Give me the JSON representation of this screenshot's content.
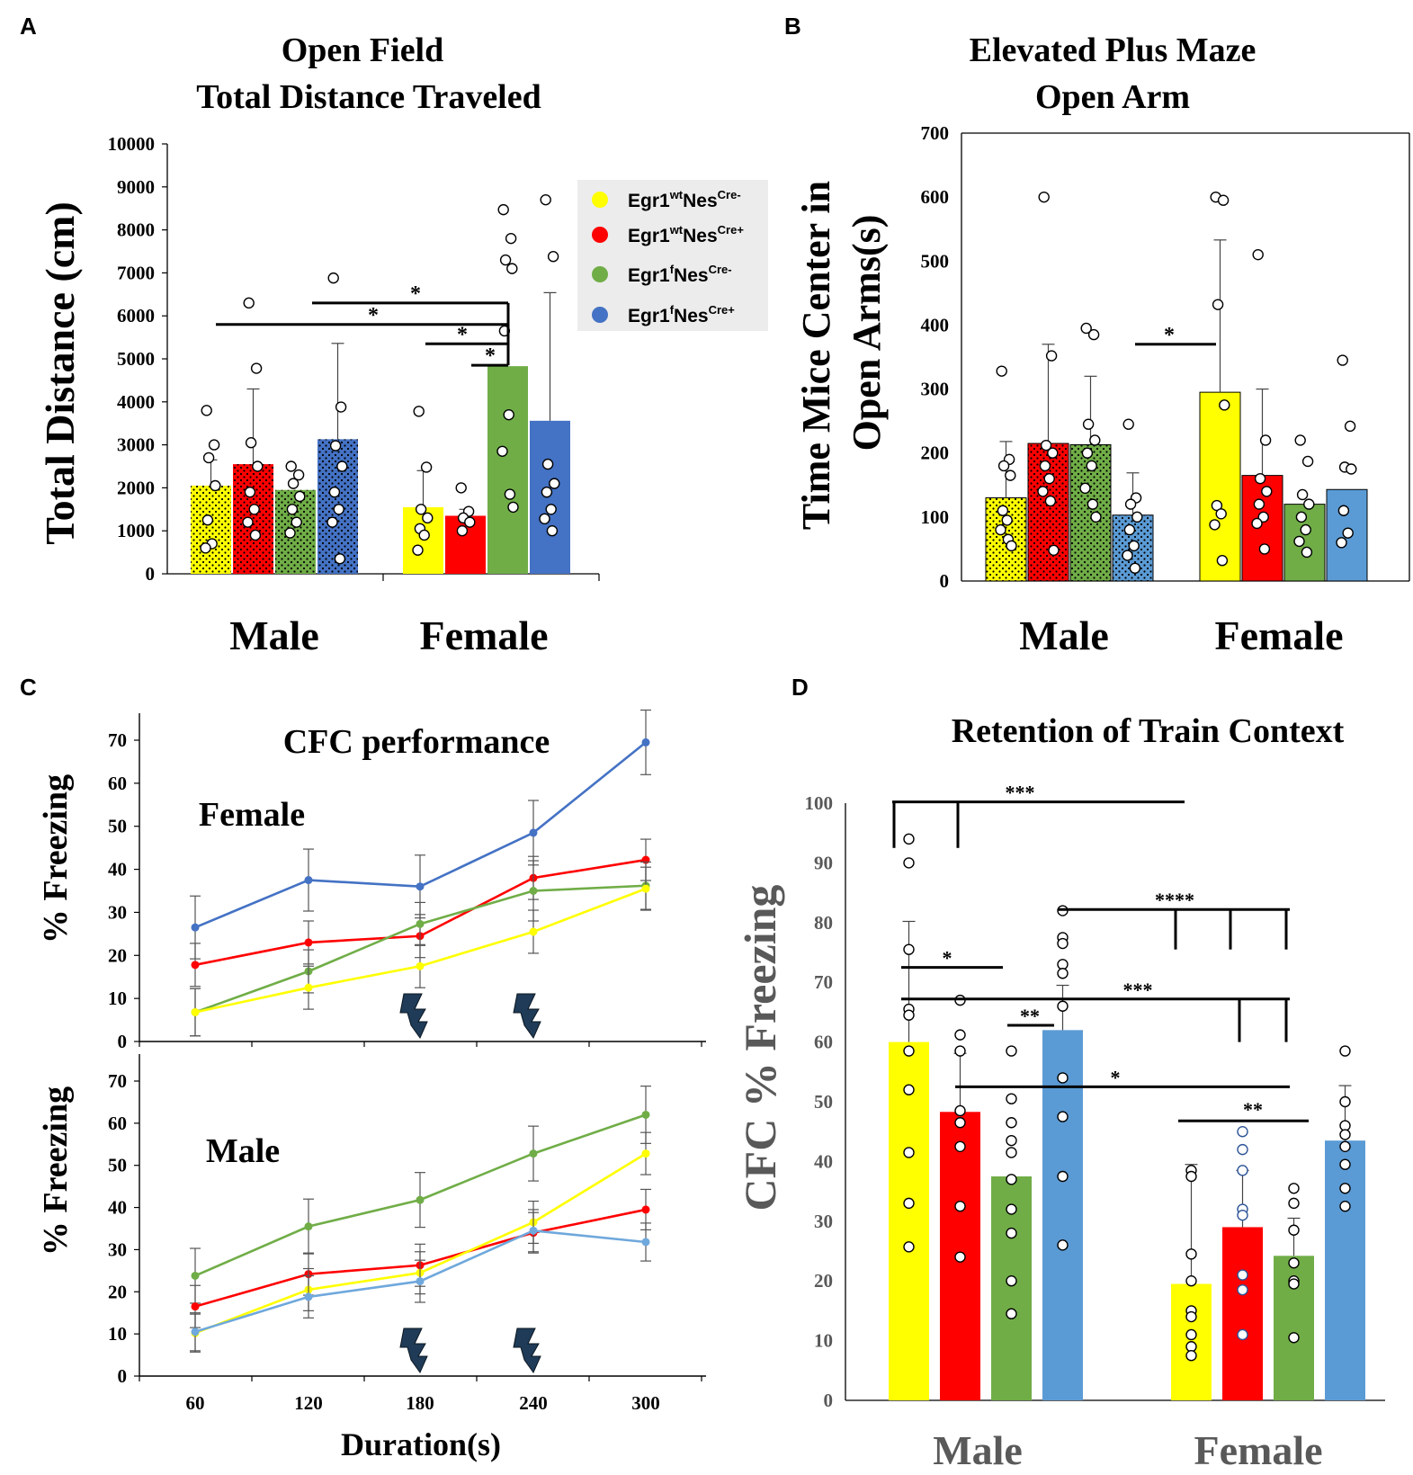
{
  "colors": {
    "yellow": "#ffff00",
    "red": "#ff0000",
    "green": "#70ad47",
    "blueA": "#4472c4",
    "blueD": "#5b9bd5",
    "lineBlueMale": "#6fa8dc"
  },
  "groups": [
    "Male",
    "Female"
  ],
  "legend": {
    "items": [
      {
        "base": "Egr1",
        "sup1": "wt",
        "mid": "Nes",
        "sup2": "Cre-",
        "color": "#ffff00"
      },
      {
        "base": "Egr1",
        "sup1": "wt",
        "mid": "Nes",
        "sup2": "Cre+",
        "color": "#ff0000"
      },
      {
        "base": "Egr1",
        "sup1": "f",
        "mid": "Nes",
        "sup2": "Cre-",
        "color": "#70ad47"
      },
      {
        "base": "Egr1",
        "sup1": "f",
        "mid": "Nes",
        "sup2": "Cre+",
        "color": "#4472c4"
      }
    ]
  },
  "chart_data": [
    {
      "panel": "A",
      "type": "bar",
      "title": [
        "Open Field",
        "Total Distance Traveled"
      ],
      "ylabel": "Total Distance (cm)",
      "ylim": [
        0,
        10000
      ],
      "yticks": [
        0,
        1000,
        2000,
        3000,
        4000,
        5000,
        6000,
        7000,
        8000,
        9000,
        10000
      ],
      "categories": [
        "Male",
        "Female"
      ],
      "series": [
        {
          "name": "Egr1wtNesCre-",
          "values": [
            2050,
            1550
          ],
          "errors": [
            600,
            850
          ],
          "dotted": true
        },
        {
          "name": "Egr1wtNesCre+",
          "values": [
            2550,
            1350
          ],
          "errors": [
            1750,
            150
          ],
          "dotted": true
        },
        {
          "name": "Egr1fNesCre-",
          "values": [
            1950,
            4830
          ],
          "errors": [
            0,
            0
          ],
          "dotted": true
        },
        {
          "name": "Egr1fNesCre+",
          "values": [
            3130,
            3560
          ],
          "errors": [
            2230,
            2980
          ],
          "dotted": true
        }
      ],
      "points": [
        [
          [
            3800,
            3000,
            2700,
            2050,
            1250,
            700,
            600
          ],
          [
            3780,
            2480,
            1500,
            1300,
            1050,
            900,
            550
          ]
        ],
        [
          [
            6300,
            4780,
            3050,
            2500,
            1900,
            1500,
            1200,
            900
          ],
          [
            2000,
            1450,
            1300,
            1200,
            1000
          ]
        ],
        [
          [
            2500,
            2300,
            2100,
            1800,
            1500,
            1200,
            950
          ],
          [
            8470,
            7800,
            7300,
            7100,
            5650,
            3700,
            2850,
            1850,
            1550
          ]
        ],
        [
          [
            6880,
            3880,
            2980,
            2500,
            1900,
            1500,
            1200,
            350
          ],
          [
            8700,
            7380,
            2550,
            2100,
            1900,
            1500,
            1280,
            1000
          ]
        ]
      ],
      "significance": [
        {
          "label": "*",
          "from": [
            0,
            2
          ],
          "to": [
            1,
            2
          ]
        },
        {
          "label": "*",
          "from": [
            0,
            1
          ],
          "to": [
            1,
            2
          ]
        },
        {
          "label": "*",
          "from": [
            1,
            0
          ],
          "to": [
            1,
            2
          ]
        },
        {
          "label": "*",
          "from": [
            1,
            1
          ],
          "to": [
            1,
            2
          ]
        }
      ]
    },
    {
      "panel": "B",
      "type": "bar",
      "title": [
        "Elevated Plus Maze",
        "Open Arm"
      ],
      "ylabel": [
        "Time Mice Center in",
        "Open Arms(s)"
      ],
      "ylim": [
        0,
        700
      ],
      "yticks": [
        0,
        100,
        200,
        300,
        400,
        500,
        600,
        700
      ],
      "categories": [
        "Male",
        "Female"
      ],
      "series": [
        {
          "name": "Egr1wtNesCre-",
          "values": [
            130,
            295
          ],
          "errors": [
            88,
            238
          ]
        },
        {
          "name": "Egr1wtNesCre+",
          "values": [
            215,
            165
          ],
          "errors": [
            155,
            135
          ]
        },
        {
          "name": "Egr1fNesCre-",
          "values": [
            213,
            120
          ],
          "errors": [
            107,
            0
          ]
        },
        {
          "name": "Egr1fNesCre+",
          "values": [
            103,
            143
          ],
          "errors": [
            66,
            0
          ]
        }
      ],
      "points": [
        [
          [
            328,
            190,
            180,
            165,
            110,
            95,
            80,
            65,
            55
          ],
          [
            600,
            595,
            432,
            275,
            118,
            105,
            88,
            32
          ]
        ],
        [
          [
            600,
            352,
            212,
            200,
            180,
            160,
            140,
            125,
            48
          ],
          [
            510,
            220,
            160,
            140,
            120,
            100,
            90,
            50
          ]
        ],
        [
          [
            395,
            385,
            245,
            220,
            200,
            180,
            145,
            120,
            100
          ],
          [
            220,
            187,
            135,
            120,
            100,
            80,
            62,
            45
          ]
        ],
        [
          [
            245,
            130,
            120,
            100,
            80,
            55,
            40,
            20
          ],
          [
            345,
            242,
            178,
            175,
            110,
            75,
            60
          ]
        ]
      ],
      "significance": [
        {
          "label": "*",
          "from": [
            0,
            3
          ],
          "to": [
            1,
            0
          ]
        }
      ]
    },
    {
      "panel": "C",
      "type": "line",
      "title": "CFC performance",
      "xlabel": "Duration(s)",
      "ylabel": "% Freezing",
      "x": [
        60,
        120,
        180,
        240,
        300
      ],
      "ylim": [
        0,
        70
      ],
      "yticks": [
        0,
        10,
        20,
        30,
        40,
        50,
        60,
        70
      ],
      "shocks": [
        180,
        240
      ],
      "subplots": [
        {
          "label": "Female",
          "series": [
            {
              "name": "Egr1fNesCre+",
              "color": "#4472c4",
              "values": [
                26.5,
                37.5,
                36.0,
                48.5,
                69.5
              ],
              "errors": [
                7.3,
                7.2,
                7.3,
                7.5,
                7.5
              ]
            },
            {
              "name": "Egr1wtNesCre+",
              "color": "#ff0000",
              "values": [
                17.8,
                23.0,
                24.5,
                38.0,
                42.2
              ],
              "errors": [
                5.0,
                5.0,
                5.0,
                5.0,
                4.8
              ]
            },
            {
              "name": "Egr1fNesCre-",
              "color": "#70ad47",
              "values": [
                6.8,
                16.3,
                27.3,
                35.0,
                36.2
              ],
              "errors": [
                5.5,
                5.0,
                5.0,
                7.0,
                5.5
              ]
            },
            {
              "name": "Egr1wtNesCre-",
              "color": "#ffff00",
              "values": [
                6.8,
                12.5,
                17.5,
                25.5,
                35.5
              ],
              "errors": [
                5.5,
                5.0,
                5.0,
                5.0,
                5.0
              ]
            }
          ]
        },
        {
          "label": "Male",
          "series": [
            {
              "name": "Egr1fNesCre-",
              "color": "#70ad47",
              "values": [
                23.8,
                35.5,
                41.8,
                52.8,
                62.0
              ],
              "errors": [
                6.5,
                6.5,
                6.5,
                6.5,
                6.8
              ]
            },
            {
              "name": "Egr1wtNesCre+",
              "color": "#ff0000",
              "values": [
                16.5,
                24.2,
                26.3,
                34.0,
                39.5
              ],
              "errors": [
                5.0,
                5.0,
                5.0,
                4.8,
                4.8
              ]
            },
            {
              "name": "Egr1wtNesCre-",
              "color": "#ffff00",
              "values": [
                10.2,
                20.5,
                24.5,
                36.5,
                52.8
              ],
              "errors": [
                4.5,
                5.0,
                5.0,
                5.0,
                5.0
              ]
            },
            {
              "name": "Egr1fNesCre+",
              "color": "#6fa8dc",
              "values": [
                10.5,
                18.8,
                22.5,
                34.5,
                31.8
              ],
              "errors": [
                4.5,
                5.0,
                5.0,
                5.0,
                4.5
              ]
            }
          ]
        }
      ]
    },
    {
      "panel": "D",
      "type": "bar",
      "title": "Retention of Train Context",
      "ylabel": "CFC % Freezing",
      "ylim": [
        0,
        100
      ],
      "yticks": [
        0,
        10,
        20,
        30,
        40,
        50,
        60,
        70,
        80,
        90,
        100
      ],
      "categories": [
        "Male",
        "Female"
      ],
      "series": [
        {
          "name": "Egr1wtNesCre-",
          "values": [
            60,
            19.5
          ],
          "errors": [
            20.2,
            20
          ]
        },
        {
          "name": "Egr1wtNesCre+",
          "values": [
            48.3,
            29
          ],
          "errors": [
            9.8,
            9.5
          ]
        },
        {
          "name": "Egr1fNesCre-",
          "values": [
            37.5,
            24.2
          ],
          "errors": [
            0,
            6.3
          ]
        },
        {
          "name": "Egr1fNesCre+",
          "values": [
            62,
            43.5
          ],
          "errors": [
            7.5,
            9.2
          ]
        }
      ],
      "points": [
        [
          [
            94,
            90,
            75.5,
            65.5,
            64.5,
            58.5,
            52,
            41.5,
            33,
            25.7
          ],
          [
            38.5,
            37.5,
            24.5,
            20,
            15,
            14,
            11,
            9,
            7.5
          ]
        ],
        [
          [
            67,
            61.2,
            58.5,
            48.5,
            46.5,
            42.5,
            32.5,
            24
          ],
          [
            45,
            42,
            38.5,
            32,
            31,
            21,
            18.5,
            11
          ]
        ],
        [
          [
            58.5,
            50.5,
            46.5,
            43.5,
            41.5,
            37,
            32,
            28,
            20,
            14.5
          ],
          [
            35.5,
            33,
            28.5,
            23,
            20,
            19.5,
            10.5
          ]
        ],
        [
          [
            82,
            77.5,
            76.5,
            73,
            71.5,
            66,
            54,
            47.5,
            37.5,
            26
          ],
          [
            58.5,
            50,
            46,
            44.5,
            42.5,
            39.5,
            35.5,
            32.5
          ]
        ]
      ],
      "significance": [
        {
          "label": "***"
        },
        {
          "label": "****"
        },
        {
          "label": "*"
        },
        {
          "label": "***"
        },
        {
          "label": "**"
        },
        {
          "label": "*"
        },
        {
          "label": "**"
        }
      ]
    }
  ],
  "panel_labels": [
    "A",
    "B",
    "C",
    "D"
  ]
}
